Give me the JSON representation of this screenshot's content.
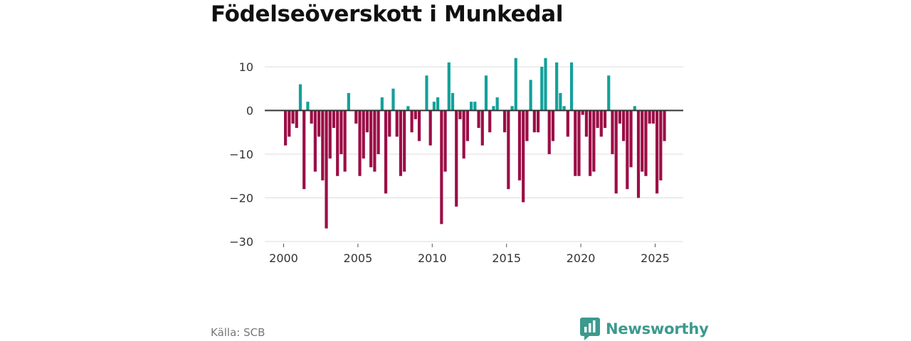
{
  "title": "Födelseöverskott i Munkedal",
  "source": "Källa: SCB",
  "brand": {
    "name": "Newsworthy",
    "icon": "newsworthy-logo-icon"
  },
  "colors": {
    "positive": "#14a09a",
    "negative": "#9b0e46",
    "grid": "#dddddd",
    "zero": "#333333",
    "brand": "#3c9a8e"
  },
  "chart_data": {
    "type": "bar",
    "title": "Födelseöverskott i Munkedal",
    "xlabel": "",
    "ylabel": "",
    "frequency": "quarterly",
    "start": "2000-Q1",
    "ylim": [
      -30,
      13
    ],
    "yticks": [
      10,
      0,
      -10,
      -20,
      -30
    ],
    "ytick_labels": [
      "10",
      "0",
      "−10",
      "−20",
      "−30"
    ],
    "xticks": [
      2000,
      2005,
      2010,
      2015,
      2020,
      2025
    ],
    "values": [
      -8,
      -6,
      -3,
      -4,
      6,
      -18,
      2,
      -3,
      -14,
      -6,
      -16,
      -27,
      -11,
      -4,
      -15,
      -10,
      -14,
      4,
      0,
      -3,
      -15,
      -11,
      -5,
      -13,
      -14,
      -10,
      3,
      -19,
      -6,
      5,
      -6,
      -15,
      -14,
      1,
      -5,
      -2,
      -7,
      0,
      8,
      -8,
      2,
      3,
      -26,
      -14,
      11,
      4,
      -22,
      -2,
      -11,
      -7,
      2,
      2,
      -4,
      -8,
      8,
      -5,
      1,
      3,
      0,
      -5,
      -18,
      1,
      12,
      -16,
      -21,
      -7,
      7,
      -5,
      -5,
      10,
      12,
      -10,
      -7,
      11,
      4,
      1,
      -6,
      11,
      -15,
      -15,
      -1,
      -6,
      -15,
      -14,
      -4,
      -6,
      -4,
      8,
      -10,
      -19,
      -3,
      -7,
      -18,
      -13,
      1,
      -20,
      -14,
      -15,
      -3,
      -3,
      -19,
      -16,
      -7
    ]
  }
}
